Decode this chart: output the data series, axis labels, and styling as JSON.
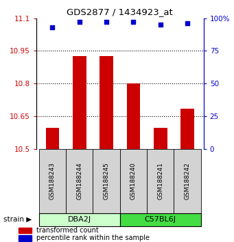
{
  "title": "GDS2877 / 1434923_at",
  "samples": [
    "GSM188243",
    "GSM188244",
    "GSM188245",
    "GSM188240",
    "GSM188241",
    "GSM188242"
  ],
  "group_label_dba": "DBA2J",
  "group_label_c57": "C57BL6J",
  "dba_color": "#CCFFCC",
  "c57_color": "#44DD44",
  "red_values": [
    10.595,
    10.925,
    10.925,
    10.8,
    10.595,
    10.685
  ],
  "blue_percentiles": [
    93,
    97,
    97,
    97,
    95,
    96
  ],
  "ylim_left": [
    10.5,
    11.1
  ],
  "ylim_right": [
    0,
    100
  ],
  "yticks_left": [
    10.5,
    10.65,
    10.8,
    10.95,
    11.1
  ],
  "yticks_right": [
    0,
    25,
    50,
    75,
    100
  ],
  "ytick_labels_left": [
    "10.5",
    "10.65",
    "10.8",
    "10.95",
    "11.1"
  ],
  "ytick_labels_right": [
    "0",
    "25",
    "50",
    "75",
    "100%"
  ],
  "left_color": "#CC0000",
  "right_color": "#0000CC",
  "bar_color": "#CC0000",
  "dot_color": "#0000CC",
  "bar_width": 0.5,
  "gridline_color": "black",
  "tick_area_bg": "#D3D3D3",
  "legend_red": "transformed count",
  "legend_blue": "percentile rank within the sample",
  "figsize": [
    3.41,
    3.54
  ],
  "dpi": 100
}
